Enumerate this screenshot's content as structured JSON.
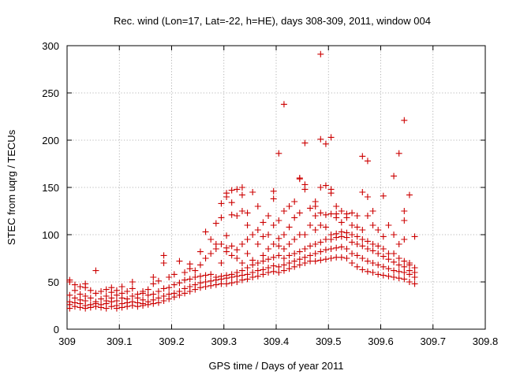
{
  "chart_data": {
    "type": "scatter",
    "title": "Rec. wind (Lon=17, Lat=-22, h=HE), days 308-309, 2011, window 004",
    "xlabel": "GPS time / Days of year 2011",
    "ylabel": "STEC from uqrg / TECUs",
    "xlim": [
      309,
      309.8
    ],
    "ylim": [
      0,
      300
    ],
    "xticks": [
      "309",
      "309.1",
      "309.2",
      "309.3",
      "309.4",
      "309.5",
      "309.6",
      "309.7",
      "309.8"
    ],
    "yticks": [
      "0",
      "50",
      "100",
      "150",
      "200",
      "250",
      "300"
    ],
    "grid": true,
    "marker": "plus",
    "color": "#cc0000",
    "points": [
      [
        309.005,
        22
      ],
      [
        309.005,
        26
      ],
      [
        309.005,
        29
      ],
      [
        309.005,
        36
      ],
      [
        309.005,
        50
      ],
      [
        309.005,
        52
      ],
      [
        309.015,
        24
      ],
      [
        309.015,
        28
      ],
      [
        309.015,
        33
      ],
      [
        309.015,
        41
      ],
      [
        309.015,
        47
      ],
      [
        309.025,
        23
      ],
      [
        309.025,
        27
      ],
      [
        309.025,
        31
      ],
      [
        309.025,
        37
      ],
      [
        309.025,
        45
      ],
      [
        309.035,
        22
      ],
      [
        309.035,
        25
      ],
      [
        309.035,
        30
      ],
      [
        309.035,
        35
      ],
      [
        309.035,
        44
      ],
      [
        309.035,
        48
      ],
      [
        309.045,
        23
      ],
      [
        309.045,
        26
      ],
      [
        309.045,
        33
      ],
      [
        309.045,
        41
      ],
      [
        309.055,
        24
      ],
      [
        309.055,
        27
      ],
      [
        309.055,
        29
      ],
      [
        309.055,
        38
      ],
      [
        309.055,
        62
      ],
      [
        309.065,
        23
      ],
      [
        309.065,
        26
      ],
      [
        309.065,
        32
      ],
      [
        309.065,
        40
      ],
      [
        309.075,
        22
      ],
      [
        309.075,
        27
      ],
      [
        309.075,
        30
      ],
      [
        309.075,
        35
      ],
      [
        309.075,
        42
      ],
      [
        309.085,
        24
      ],
      [
        309.085,
        29
      ],
      [
        309.085,
        33
      ],
      [
        309.085,
        39
      ],
      [
        309.085,
        44
      ],
      [
        309.095,
        22
      ],
      [
        309.095,
        25
      ],
      [
        309.095,
        30
      ],
      [
        309.095,
        36
      ],
      [
        309.095,
        41
      ],
      [
        309.105,
        23
      ],
      [
        309.105,
        27
      ],
      [
        309.105,
        33
      ],
      [
        309.105,
        38
      ],
      [
        309.105,
        45
      ],
      [
        309.115,
        24
      ],
      [
        309.115,
        28
      ],
      [
        309.115,
        32
      ],
      [
        309.115,
        40
      ],
      [
        309.125,
        25
      ],
      [
        309.125,
        29
      ],
      [
        309.125,
        35
      ],
      [
        309.125,
        43
      ],
      [
        309.125,
        50
      ],
      [
        309.135,
        24
      ],
      [
        309.135,
        28
      ],
      [
        309.135,
        33
      ],
      [
        309.135,
        37
      ],
      [
        309.145,
        25
      ],
      [
        309.145,
        27
      ],
      [
        309.145,
        31
      ],
      [
        309.145,
        38
      ],
      [
        309.145,
        40
      ],
      [
        309.155,
        26
      ],
      [
        309.155,
        29
      ],
      [
        309.155,
        36
      ],
      [
        309.155,
        42
      ],
      [
        309.165,
        27
      ],
      [
        309.165,
        31
      ],
      [
        309.165,
        37
      ],
      [
        309.165,
        48
      ],
      [
        309.165,
        55
      ],
      [
        309.175,
        28
      ],
      [
        309.175,
        33
      ],
      [
        309.175,
        40
      ],
      [
        309.175,
        51
      ],
      [
        309.185,
        30
      ],
      [
        309.185,
        35
      ],
      [
        309.185,
        43
      ],
      [
        309.185,
        70
      ],
      [
        309.185,
        78
      ],
      [
        309.195,
        32
      ],
      [
        309.195,
        37
      ],
      [
        309.195,
        44
      ],
      [
        309.195,
        55
      ],
      [
        309.205,
        34
      ],
      [
        309.205,
        38
      ],
      [
        309.205,
        47
      ],
      [
        309.205,
        58
      ],
      [
        309.215,
        36
      ],
      [
        309.215,
        40
      ],
      [
        309.215,
        49
      ],
      [
        309.215,
        72
      ],
      [
        309.225,
        38
      ],
      [
        309.225,
        43
      ],
      [
        309.225,
        52
      ],
      [
        309.225,
        60
      ],
      [
        309.235,
        40
      ],
      [
        309.235,
        45
      ],
      [
        309.235,
        53
      ],
      [
        309.235,
        64
      ],
      [
        309.235,
        69
      ],
      [
        309.245,
        42
      ],
      [
        309.245,
        47
      ],
      [
        309.245,
        55
      ],
      [
        309.245,
        62
      ],
      [
        309.255,
        44
      ],
      [
        309.255,
        49
      ],
      [
        309.255,
        56
      ],
      [
        309.255,
        68
      ],
      [
        309.255,
        82
      ],
      [
        309.265,
        45
      ],
      [
        309.265,
        50
      ],
      [
        309.265,
        57
      ],
      [
        309.265,
        75
      ],
      [
        309.265,
        103
      ],
      [
        309.275,
        46
      ],
      [
        309.275,
        51
      ],
      [
        309.275,
        58
      ],
      [
        309.275,
        80
      ],
      [
        309.275,
        95
      ],
      [
        309.285,
        47
      ],
      [
        309.285,
        52
      ],
      [
        309.285,
        55
      ],
      [
        309.285,
        85
      ],
      [
        309.285,
        90
      ],
      [
        309.285,
        112
      ],
      [
        309.295,
        48
      ],
      [
        309.295,
        53
      ],
      [
        309.295,
        56
      ],
      [
        309.295,
        70
      ],
      [
        309.295,
        90
      ],
      [
        309.295,
        118
      ],
      [
        309.295,
        133
      ],
      [
        309.305,
        48
      ],
      [
        309.305,
        54
      ],
      [
        309.305,
        57
      ],
      [
        309.305,
        82
      ],
      [
        309.305,
        86
      ],
      [
        309.305,
        99
      ],
      [
        309.305,
        140
      ],
      [
        309.305,
        144
      ],
      [
        309.315,
        49
      ],
      [
        309.315,
        55
      ],
      [
        309.315,
        58
      ],
      [
        309.315,
        78
      ],
      [
        309.315,
        88
      ],
      [
        309.315,
        121
      ],
      [
        309.315,
        134
      ],
      [
        309.315,
        147
      ],
      [
        309.325,
        50
      ],
      [
        309.325,
        56
      ],
      [
        309.325,
        60
      ],
      [
        309.325,
        75
      ],
      [
        309.325,
        84
      ],
      [
        309.325,
        120
      ],
      [
        309.325,
        148
      ],
      [
        309.335,
        52
      ],
      [
        309.335,
        57
      ],
      [
        309.335,
        62
      ],
      [
        309.335,
        70
      ],
      [
        309.335,
        90
      ],
      [
        309.335,
        125
      ],
      [
        309.335,
        142
      ],
      [
        309.335,
        150
      ],
      [
        309.345,
        53
      ],
      [
        309.345,
        58
      ],
      [
        309.345,
        65
      ],
      [
        309.345,
        80
      ],
      [
        309.345,
        95
      ],
      [
        309.345,
        110
      ],
      [
        309.345,
        123
      ],
      [
        309.355,
        55
      ],
      [
        309.355,
        60
      ],
      [
        309.355,
        68
      ],
      [
        309.355,
        73
      ],
      [
        309.355,
        100
      ],
      [
        309.355,
        145
      ],
      [
        309.365,
        56
      ],
      [
        309.365,
        62
      ],
      [
        309.365,
        70
      ],
      [
        309.365,
        90
      ],
      [
        309.365,
        105
      ],
      [
        309.365,
        130
      ],
      [
        309.375,
        58
      ],
      [
        309.375,
        63
      ],
      [
        309.375,
        72
      ],
      [
        309.375,
        78
      ],
      [
        309.375,
        98
      ],
      [
        309.375,
        113
      ],
      [
        309.385,
        60
      ],
      [
        309.385,
        65
      ],
      [
        309.385,
        74
      ],
      [
        309.385,
        85
      ],
      [
        309.385,
        100
      ],
      [
        309.385,
        120
      ],
      [
        309.395,
        61
      ],
      [
        309.395,
        67
      ],
      [
        309.395,
        76
      ],
      [
        309.395,
        90
      ],
      [
        309.395,
        110
      ],
      [
        309.395,
        138
      ],
      [
        309.395,
        146
      ],
      [
        309.405,
        60
      ],
      [
        309.405,
        66
      ],
      [
        309.405,
        78
      ],
      [
        309.405,
        88
      ],
      [
        309.405,
        96
      ],
      [
        309.405,
        115
      ],
      [
        309.405,
        186
      ],
      [
        309.415,
        62
      ],
      [
        309.415,
        68
      ],
      [
        309.415,
        75
      ],
      [
        309.415,
        85
      ],
      [
        309.415,
        100
      ],
      [
        309.415,
        125
      ],
      [
        309.415,
        238
      ],
      [
        309.425,
        64
      ],
      [
        309.425,
        70
      ],
      [
        309.425,
        78
      ],
      [
        309.425,
        90
      ],
      [
        309.425,
        108
      ],
      [
        309.425,
        130
      ],
      [
        309.435,
        66
      ],
      [
        309.435,
        72
      ],
      [
        309.435,
        80
      ],
      [
        309.435,
        95
      ],
      [
        309.435,
        118
      ],
      [
        309.435,
        135
      ],
      [
        309.445,
        68
      ],
      [
        309.445,
        74
      ],
      [
        309.445,
        82
      ],
      [
        309.445,
        100
      ],
      [
        309.445,
        123
      ],
      [
        309.445,
        160
      ],
      [
        309.445,
        159
      ],
      [
        309.455,
        70
      ],
      [
        309.455,
        76
      ],
      [
        309.455,
        85
      ],
      [
        309.455,
        100
      ],
      [
        309.455,
        148
      ],
      [
        309.455,
        153
      ],
      [
        309.455,
        197
      ],
      [
        309.465,
        72
      ],
      [
        309.465,
        78
      ],
      [
        309.465,
        88
      ],
      [
        309.465,
        110
      ],
      [
        309.465,
        128
      ],
      [
        309.475,
        72
      ],
      [
        309.475,
        80
      ],
      [
        309.475,
        90
      ],
      [
        309.475,
        105
      ],
      [
        309.475,
        120
      ],
      [
        309.475,
        130
      ],
      [
        309.475,
        135
      ],
      [
        309.485,
        73
      ],
      [
        309.485,
        82
      ],
      [
        309.485,
        92
      ],
      [
        309.485,
        110
      ],
      [
        309.485,
        123
      ],
      [
        309.485,
        150
      ],
      [
        309.485,
        201
      ],
      [
        309.485,
        291
      ],
      [
        309.495,
        74
      ],
      [
        309.495,
        84
      ],
      [
        309.495,
        95
      ],
      [
        309.495,
        108
      ],
      [
        309.495,
        121
      ],
      [
        309.495,
        152
      ],
      [
        309.495,
        196
      ],
      [
        309.505,
        75
      ],
      [
        309.505,
        85
      ],
      [
        309.505,
        95
      ],
      [
        309.505,
        100
      ],
      [
        309.505,
        122
      ],
      [
        309.505,
        144
      ],
      [
        309.505,
        148
      ],
      [
        309.505,
        203
      ],
      [
        309.515,
        76
      ],
      [
        309.515,
        86
      ],
      [
        309.515,
        97
      ],
      [
        309.515,
        101
      ],
      [
        309.515,
        118
      ],
      [
        309.515,
        122
      ],
      [
        309.515,
        130
      ],
      [
        309.525,
        76
      ],
      [
        309.525,
        87
      ],
      [
        309.525,
        98
      ],
      [
        309.525,
        103
      ],
      [
        309.525,
        113
      ],
      [
        309.525,
        125
      ],
      [
        309.535,
        75
      ],
      [
        309.535,
        85
      ],
      [
        309.535,
        97
      ],
      [
        309.535,
        102
      ],
      [
        309.535,
        118
      ],
      [
        309.535,
        122
      ],
      [
        309.545,
        70
      ],
      [
        309.545,
        80
      ],
      [
        309.545,
        92
      ],
      [
        309.545,
        100
      ],
      [
        309.545,
        110
      ],
      [
        309.545,
        123
      ],
      [
        309.555,
        66
      ],
      [
        309.555,
        78
      ],
      [
        309.555,
        90
      ],
      [
        309.555,
        98
      ],
      [
        309.555,
        108
      ],
      [
        309.555,
        120
      ],
      [
        309.565,
        63
      ],
      [
        309.565,
        75
      ],
      [
        309.565,
        88
      ],
      [
        309.565,
        95
      ],
      [
        309.565,
        105
      ],
      [
        309.565,
        145
      ],
      [
        309.565,
        183
      ],
      [
        309.575,
        61
      ],
      [
        309.575,
        72
      ],
      [
        309.575,
        85
      ],
      [
        309.575,
        93
      ],
      [
        309.575,
        120
      ],
      [
        309.575,
        140
      ],
      [
        309.575,
        178
      ],
      [
        309.585,
        60
      ],
      [
        309.585,
        70
      ],
      [
        309.585,
        83
      ],
      [
        309.585,
        90
      ],
      [
        309.585,
        125
      ],
      [
        309.585,
        110
      ],
      [
        309.595,
        58
      ],
      [
        309.595,
        68
      ],
      [
        309.595,
        80
      ],
      [
        309.595,
        88
      ],
      [
        309.595,
        105
      ],
      [
        309.605,
        57
      ],
      [
        309.605,
        66
      ],
      [
        309.605,
        77
      ],
      [
        309.605,
        85
      ],
      [
        309.605,
        98
      ],
      [
        309.605,
        141
      ],
      [
        309.615,
        56
      ],
      [
        309.615,
        64
      ],
      [
        309.615,
        74
      ],
      [
        309.615,
        80
      ],
      [
        309.615,
        110
      ],
      [
        309.625,
        55
      ],
      [
        309.625,
        62
      ],
      [
        309.625,
        71
      ],
      [
        309.625,
        80
      ],
      [
        309.625,
        100
      ],
      [
        309.625,
        162
      ],
      [
        309.635,
        54
      ],
      [
        309.635,
        61
      ],
      [
        309.635,
        68
      ],
      [
        309.635,
        75
      ],
      [
        309.635,
        90
      ],
      [
        309.635,
        186
      ],
      [
        309.645,
        53
      ],
      [
        309.645,
        60
      ],
      [
        309.645,
        66
      ],
      [
        309.645,
        72
      ],
      [
        309.645,
        95
      ],
      [
        309.645,
        115
      ],
      [
        309.645,
        125
      ],
      [
        309.645,
        221
      ],
      [
        309.655,
        50
      ],
      [
        309.655,
        58
      ],
      [
        309.655,
        62
      ],
      [
        309.655,
        70
      ],
      [
        309.655,
        68
      ],
      [
        309.655,
        142
      ],
      [
        309.665,
        48
      ],
      [
        309.665,
        55
      ],
      [
        309.665,
        60
      ],
      [
        309.665,
        65
      ],
      [
        309.665,
        98
      ]
    ]
  }
}
